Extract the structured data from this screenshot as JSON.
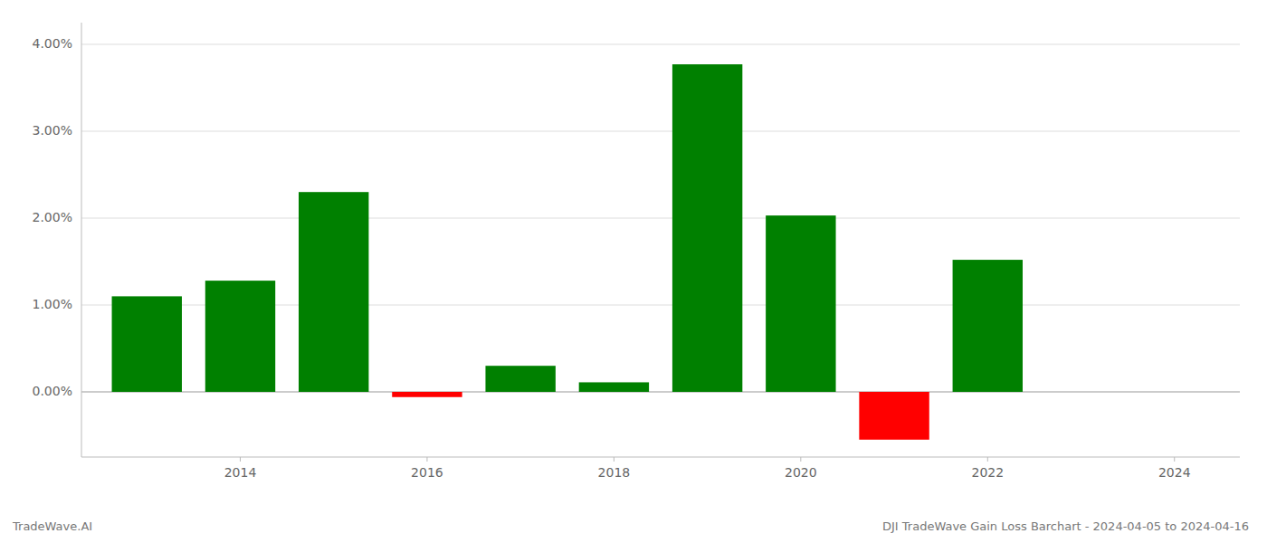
{
  "chart_data": {
    "type": "bar",
    "title": "DJI TradeWave Gain Loss Barchart - 2024-04-05 to 2024-04-16",
    "annotations": [
      "TradeWave.AI"
    ],
    "x": [
      2013,
      2014,
      2015,
      2016,
      2017,
      2018,
      2019,
      2020,
      2021,
      2022,
      2023
    ],
    "values": [
      1.1,
      1.28,
      2.3,
      -0.06,
      0.3,
      0.11,
      3.77,
      2.03,
      -0.55,
      1.52,
      0.0
    ],
    "colors": [
      "#008000",
      "#008000",
      "#008000",
      "#ff0000",
      "#008000",
      "#008000",
      "#008000",
      "#008000",
      "#ff0000",
      "#008000",
      "#008000"
    ],
    "xlim": [
      2012.3,
      2024.7
    ],
    "xticks": [
      2014,
      2016,
      2018,
      2020,
      2022,
      2024
    ],
    "ylim": [
      -0.75,
      4.25
    ],
    "yticks": [
      {
        "value": 0.0,
        "label": "0.00%"
      },
      {
        "value": 1.0,
        "label": "1.00%"
      },
      {
        "value": 2.0,
        "label": "2.00%"
      },
      {
        "value": 3.0,
        "label": "3.00%"
      },
      {
        "value": 4.0,
        "label": "4.00%"
      }
    ],
    "grid": true
  }
}
